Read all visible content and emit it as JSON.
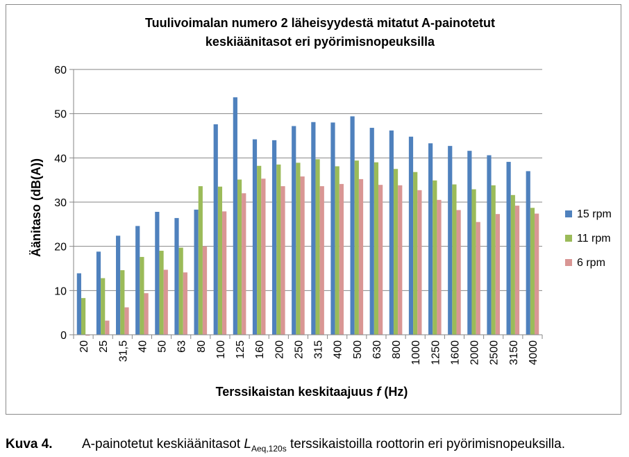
{
  "chart_data": {
    "type": "bar",
    "title": "Tuulivoimalan numero 2 läheisyydestä mitatut A-painotetut keskiäänitasot eri pyörimisnopeuksilla",
    "title_lines": [
      "Tuulivoimalan numero 2 läheisyydestä mitatut A-painotetut",
      "keskiäänitasot eri pyörimisnopeuksilla"
    ],
    "xlabel": "Terssikaistan keskitaajuus f (Hz)",
    "xlabel_parts": {
      "before": "Terssikaistan keskitaajuus ",
      "var": "f",
      "after": " (Hz)"
    },
    "ylabel": "Äänitaso (dB(A))",
    "ylim": [
      0,
      60
    ],
    "yticks": [
      0,
      10,
      20,
      30,
      40,
      50,
      60
    ],
    "grid": true,
    "legend_position": "right",
    "categories": [
      "20",
      "25",
      "31,5",
      "40",
      "50",
      "63",
      "80",
      "100",
      "125",
      "160",
      "200",
      "250",
      "315",
      "400",
      "500",
      "630",
      "800",
      "1000",
      "1250",
      "1600",
      "2000",
      "2500",
      "3150",
      "4000"
    ],
    "series": [
      {
        "name": "15 rpm",
        "color": "#4f81bd",
        "values": [
          13.9,
          18.8,
          22.4,
          24.6,
          27.8,
          26.4,
          28.3,
          47.6,
          53.7,
          44.2,
          44.0,
          47.2,
          48.1,
          48.0,
          49.4,
          46.8,
          46.2,
          44.8,
          43.3,
          42.7,
          41.6,
          40.6,
          39.1,
          37.0
        ]
      },
      {
        "name": "11 rpm",
        "color": "#9bbb59",
        "values": [
          8.3,
          12.8,
          14.6,
          17.6,
          19.0,
          19.7,
          33.6,
          33.5,
          35.1,
          38.2,
          38.5,
          38.9,
          39.7,
          38.1,
          39.4,
          39.0,
          37.5,
          36.8,
          34.9,
          34.0,
          32.9,
          33.8,
          31.6,
          28.7
        ]
      },
      {
        "name": "6 rpm",
        "color": "#d99694",
        "values": [
          -0.2,
          3.2,
          6.2,
          9.4,
          14.7,
          14.1,
          20.0,
          27.9,
          32.0,
          35.3,
          33.6,
          35.8,
          33.6,
          34.1,
          35.2,
          33.9,
          33.8,
          32.7,
          30.5,
          28.2,
          25.5,
          27.3,
          29.2,
          27.4
        ]
      }
    ]
  },
  "caption": {
    "label": "Kuva 4.",
    "text_before": "A-painotetut keskiäänitasot ",
    "symbol": "L",
    "subscript": "Aeq,120s",
    "text_after": " terssikaistoilla roottorin eri pyörimisnopeuksilla."
  }
}
